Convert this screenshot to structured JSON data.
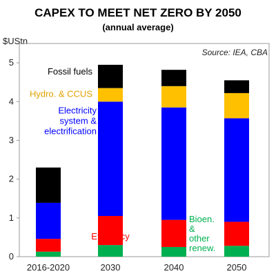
{
  "chart_data": {
    "type": "bar",
    "stacked": true,
    "title": "CAPEX TO MEET NET ZERO BY 2050",
    "subtitle": "(annual average)",
    "ylabel": "$UStn",
    "source": "Source: IEA, CBA",
    "ylim": [
      0,
      5.5
    ],
    "yticks": [
      0,
      1,
      2,
      3,
      4,
      5
    ],
    "categories": [
      "2016-2020",
      "2030",
      "2040",
      "2050"
    ],
    "series": [
      {
        "key": "bioen",
        "name": "Bioen. & other renew.",
        "color": "#00B050",
        "values": [
          0.13,
          0.3,
          0.25,
          0.28
        ]
      },
      {
        "key": "efficiency",
        "name": "Efficiency",
        "color": "#FF0000",
        "values": [
          0.33,
          0.75,
          0.7,
          0.62
        ]
      },
      {
        "key": "electricity",
        "name": "Electricity system & electrification",
        "color": "#0000FF",
        "values": [
          0.93,
          2.95,
          2.9,
          2.67
        ]
      },
      {
        "key": "hydro",
        "name": "Hydro. & CCUS",
        "color": "#FFC000",
        "values": [
          0.0,
          0.35,
          0.55,
          0.65
        ]
      },
      {
        "key": "fossil",
        "name": "Fossil fuels",
        "color": "#000000",
        "values": [
          0.91,
          0.6,
          0.42,
          0.33
        ]
      }
    ],
    "annotations": {
      "fossil": [
        "Fossil fuels"
      ],
      "hydro": [
        "Hydro. & CCUS"
      ],
      "electricity": [
        "Electricity",
        "system &",
        "electrification"
      ],
      "efficiency": [
        "Efficiency"
      ],
      "bioen": [
        "Bioen.",
        "&",
        "other",
        "renew."
      ]
    },
    "grid": false
  }
}
